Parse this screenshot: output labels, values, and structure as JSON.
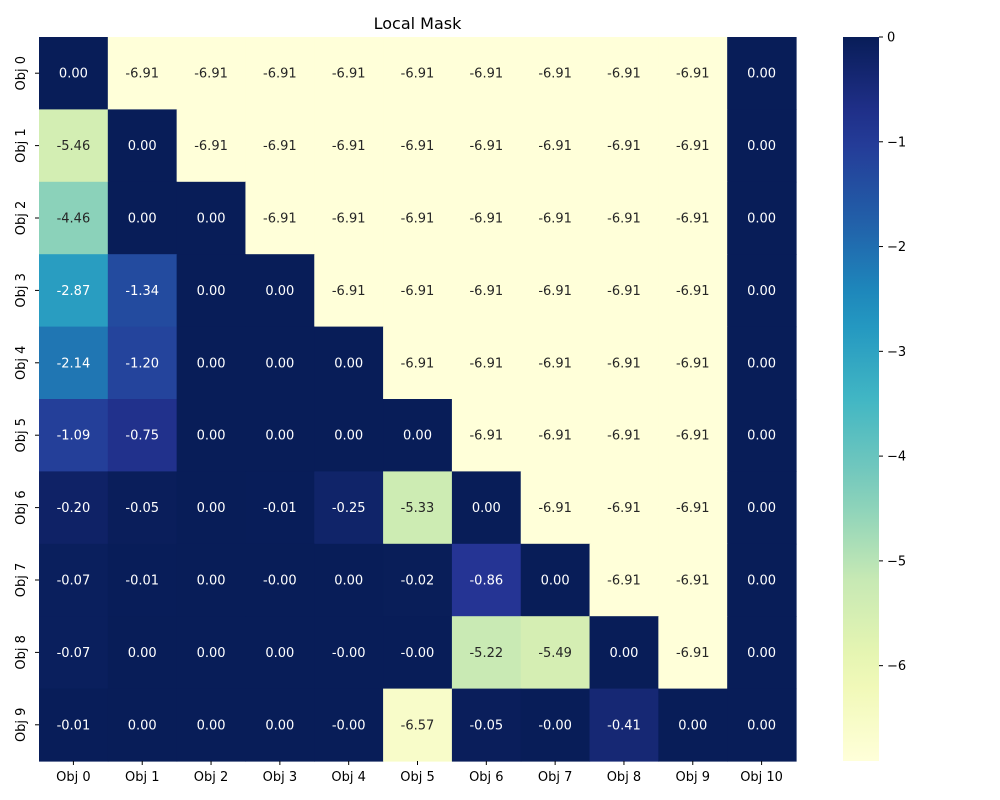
{
  "chart_data": {
    "type": "heatmap",
    "title": "Local Mask",
    "x_categories": [
      "Obj 0",
      "Obj 1",
      "Obj 2",
      "Obj 3",
      "Obj 4",
      "Obj 5",
      "Obj 6",
      "Obj 7",
      "Obj 8",
      "Obj 9",
      "Obj 10"
    ],
    "y_categories": [
      "Obj 0",
      "Obj 1",
      "Obj 2",
      "Obj 3",
      "Obj 4",
      "Obj 5",
      "Obj 6",
      "Obj 7",
      "Obj 8",
      "Obj 9"
    ],
    "values": [
      [
        0.0,
        -6.91,
        -6.91,
        -6.91,
        -6.91,
        -6.91,
        -6.91,
        -6.91,
        -6.91,
        -6.91,
        0.0
      ],
      [
        -5.46,
        0.0,
        -6.91,
        -6.91,
        -6.91,
        -6.91,
        -6.91,
        -6.91,
        -6.91,
        -6.91,
        0.0
      ],
      [
        -4.46,
        0.0,
        0.0,
        -6.91,
        -6.91,
        -6.91,
        -6.91,
        -6.91,
        -6.91,
        -6.91,
        0.0
      ],
      [
        -2.87,
        -1.34,
        0.0,
        0.0,
        -6.91,
        -6.91,
        -6.91,
        -6.91,
        -6.91,
        -6.91,
        0.0
      ],
      [
        -2.14,
        -1.2,
        0.0,
        0.0,
        0.0,
        -6.91,
        -6.91,
        -6.91,
        -6.91,
        -6.91,
        0.0
      ],
      [
        -1.09,
        -0.75,
        0.0,
        0.0,
        0.0,
        0.0,
        -6.91,
        -6.91,
        -6.91,
        -6.91,
        0.0
      ],
      [
        -0.2,
        -0.05,
        0.0,
        -0.01,
        -0.25,
        -5.33,
        0.0,
        -6.91,
        -6.91,
        -6.91,
        0.0
      ],
      [
        -0.07,
        -0.01,
        0.0,
        -0.0,
        0.0,
        -0.02,
        -0.86,
        0.0,
        -6.91,
        -6.91,
        0.0
      ],
      [
        -0.07,
        0.0,
        0.0,
        0.0,
        -0.0,
        -0.0,
        -5.22,
        -5.49,
        0.0,
        -6.91,
        0.0
      ],
      [
        -0.01,
        0.0,
        0.0,
        0.0,
        -0.0,
        -6.57,
        -0.05,
        -0.0,
        -0.41,
        0.0,
        0.0
      ]
    ],
    "cell_labels": [
      [
        "0.00",
        "-6.91",
        "-6.91",
        "-6.91",
        "-6.91",
        "-6.91",
        "-6.91",
        "-6.91",
        "-6.91",
        "-6.91",
        "0.00"
      ],
      [
        "-5.46",
        "0.00",
        "-6.91",
        "-6.91",
        "-6.91",
        "-6.91",
        "-6.91",
        "-6.91",
        "-6.91",
        "-6.91",
        "0.00"
      ],
      [
        "-4.46",
        "0.00",
        "0.00",
        "-6.91",
        "-6.91",
        "-6.91",
        "-6.91",
        "-6.91",
        "-6.91",
        "-6.91",
        "0.00"
      ],
      [
        "-2.87",
        "-1.34",
        "0.00",
        "0.00",
        "-6.91",
        "-6.91",
        "-6.91",
        "-6.91",
        "-6.91",
        "-6.91",
        "0.00"
      ],
      [
        "-2.14",
        "-1.20",
        "0.00",
        "0.00",
        "0.00",
        "-6.91",
        "-6.91",
        "-6.91",
        "-6.91",
        "-6.91",
        "0.00"
      ],
      [
        "-1.09",
        "-0.75",
        "0.00",
        "0.00",
        "0.00",
        "0.00",
        "-6.91",
        "-6.91",
        "-6.91",
        "-6.91",
        "0.00"
      ],
      [
        "-0.20",
        "-0.05",
        "0.00",
        "-0.01",
        "-0.25",
        "-5.33",
        "0.00",
        "-6.91",
        "-6.91",
        "-6.91",
        "0.00"
      ],
      [
        "-0.07",
        "-0.01",
        "0.00",
        "-0.00",
        "0.00",
        "-0.02",
        "-0.86",
        "0.00",
        "-6.91",
        "-6.91",
        "0.00"
      ],
      [
        "-0.07",
        "0.00",
        "0.00",
        "0.00",
        "-0.00",
        "-0.00",
        "-5.22",
        "-5.49",
        "0.00",
        "-6.91",
        "0.00"
      ],
      [
        "-0.01",
        "0.00",
        "0.00",
        "0.00",
        "-0.00",
        "-6.57",
        "-0.05",
        "-0.00",
        "-0.41",
        "0.00",
        "0.00"
      ]
    ],
    "colorbar": {
      "colormap": "YlGnBu",
      "vmin": -6.91,
      "vmax": 0,
      "ticks": [
        0,
        -1,
        -2,
        -3,
        -4,
        -5,
        -6
      ],
      "tick_labels": [
        "0",
        "−1",
        "−2",
        "−3",
        "−4",
        "−5",
        "−6"
      ],
      "placement": "right"
    },
    "grid": false
  }
}
